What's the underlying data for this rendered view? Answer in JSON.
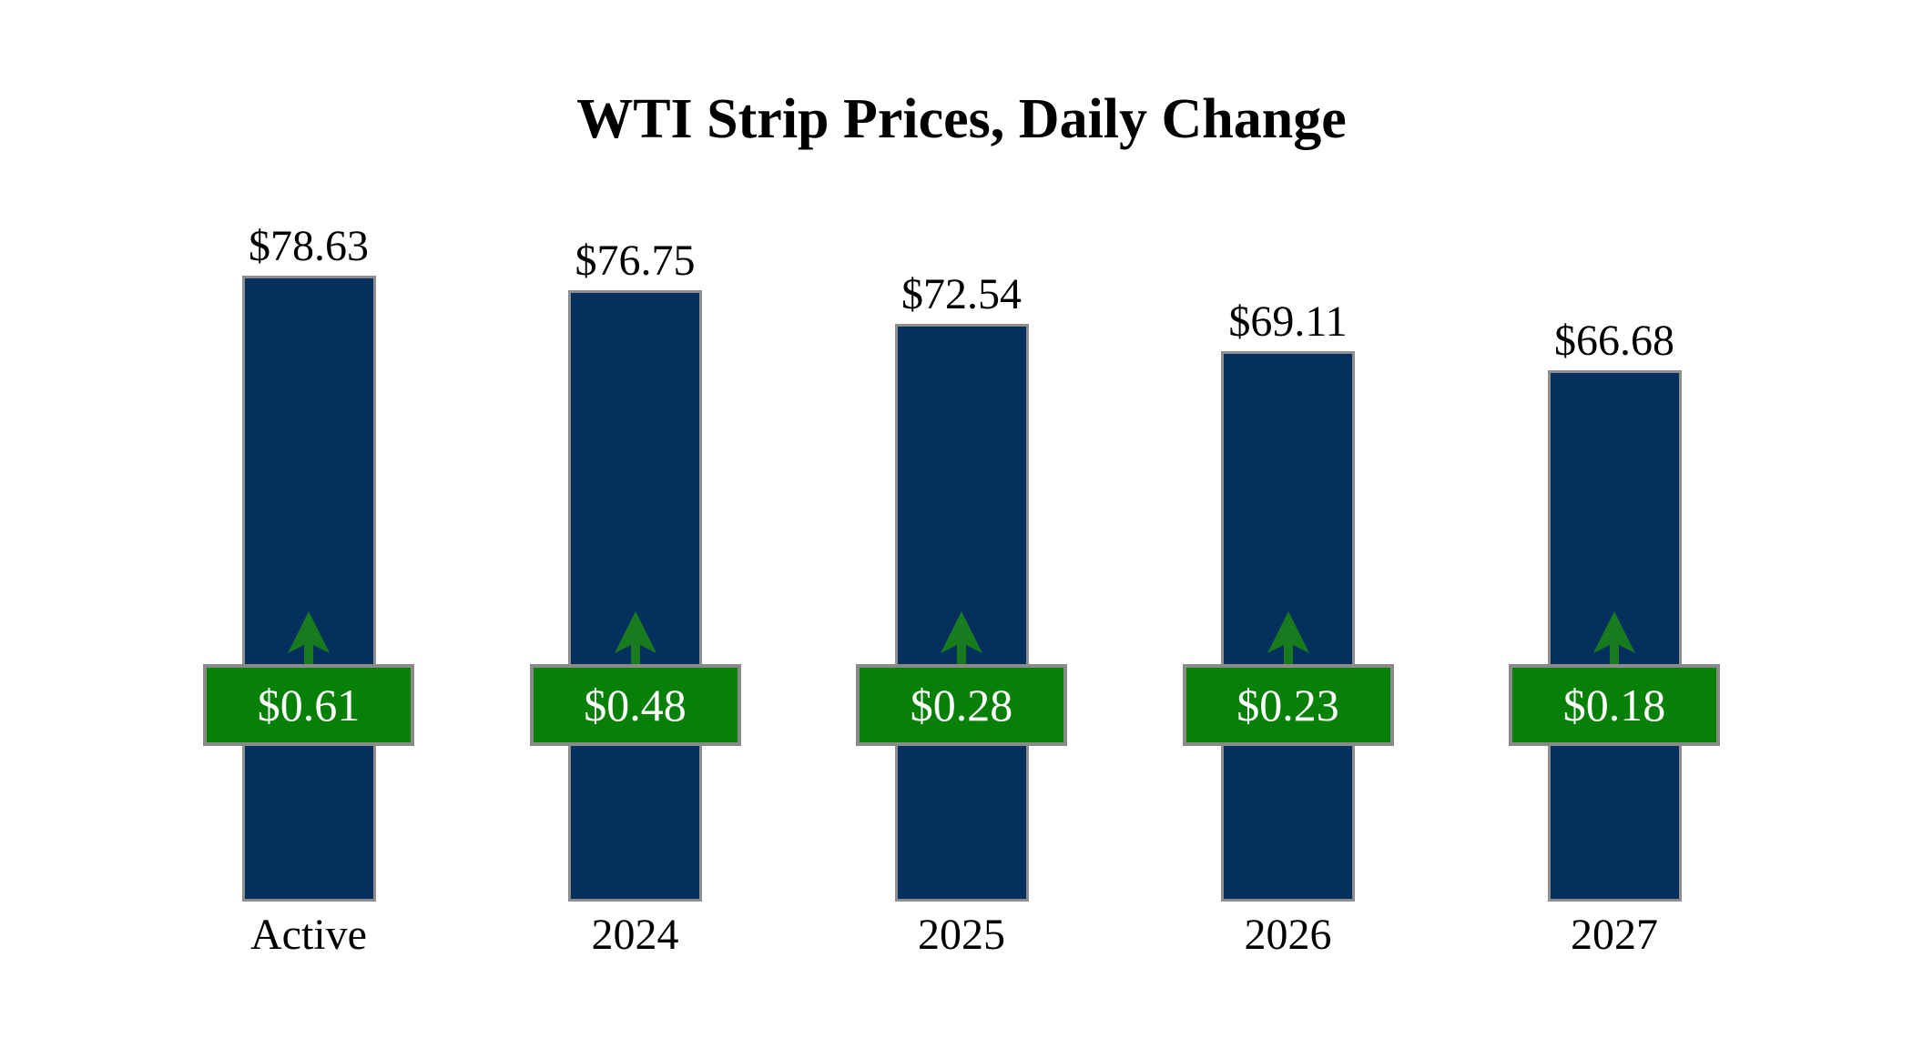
{
  "chart_data": {
    "type": "bar",
    "title": "WTI Strip Prices, Daily Change",
    "categories": [
      "Active",
      "2024",
      "2025",
      "2026",
      "2027"
    ],
    "series": [
      {
        "name": "WTI Strip Price",
        "role": "bar",
        "values": [
          78.63,
          76.75,
          72.54,
          69.11,
          66.68
        ],
        "labels": [
          "$78.63",
          "$76.75",
          "$72.54",
          "$69.11",
          "$66.68"
        ]
      },
      {
        "name": "Daily Change",
        "role": "change-badge",
        "direction": "up",
        "values": [
          0.61,
          0.48,
          0.28,
          0.23,
          0.18
        ],
        "labels": [
          "$0.61",
          "$0.48",
          "$0.28",
          "$0.23",
          "$0.18"
        ]
      }
    ],
    "ylim": [
      0,
      78.63
    ],
    "grid": false,
    "value_axis_shown": false,
    "legend": "none",
    "colors": {
      "background": "#ffffff",
      "bar_fill": "#04305e",
      "bar_border": "#8e8e8e",
      "change_box_fill": "#078007",
      "change_box_border": "#8a8a8a",
      "change_text": "#ffffff",
      "arrow": "#187c1e",
      "label_text": "#000000"
    }
  }
}
